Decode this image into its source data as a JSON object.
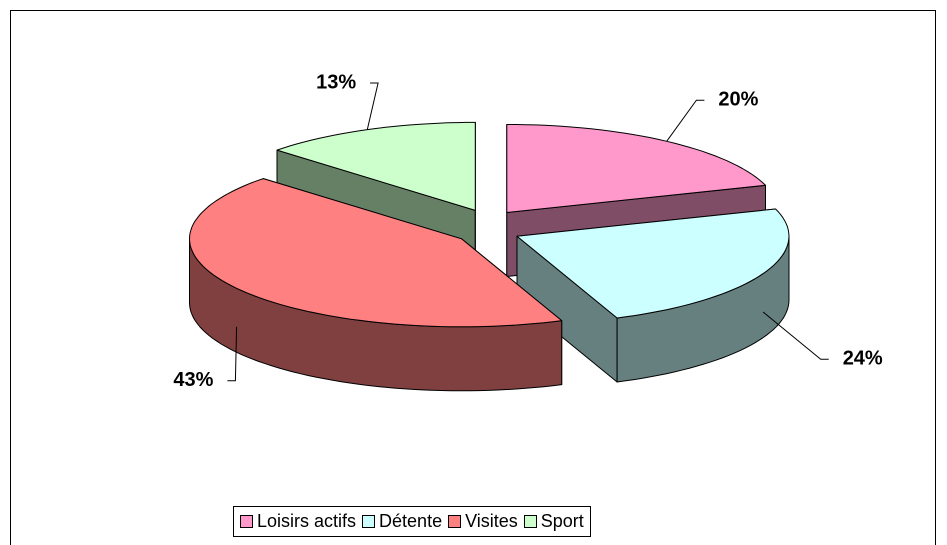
{
  "chart_data": {
    "type": "pie",
    "categories": [
      "Loisirs actifs",
      "Détente",
      "Visites",
      "Sport"
    ],
    "values": [
      20,
      24,
      43,
      13
    ],
    "value_labels": [
      "20%",
      "24%",
      "43%",
      "13%"
    ],
    "colors": [
      "#ff99cc",
      "#ccffff",
      "#ff8080",
      "#ccffcc"
    ],
    "legend": "bottom"
  }
}
